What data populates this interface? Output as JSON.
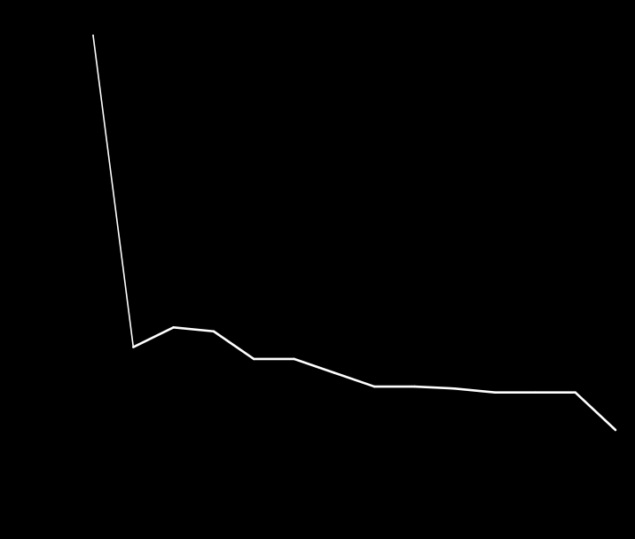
{
  "chart_data": {
    "type": "line",
    "title": "",
    "xlabel": "",
    "ylabel": "",
    "grid": false,
    "legend": "none",
    "x": [
      0,
      1,
      2,
      3,
      4,
      5,
      6,
      7,
      8,
      9,
      10,
      11,
      12,
      13
    ],
    "series": [
      {
        "values": [
          100,
          21,
          26,
          25,
          18,
          18,
          14.5,
          11,
          11,
          10.5,
          9.5,
          9.5,
          9.5,
          0
        ],
        "color": "#ffffff"
      }
    ],
    "xlim": [
      0,
      13
    ],
    "ylim": [
      0,
      100
    ]
  },
  "colors": {
    "background": "#000000",
    "line": "#ffffff"
  }
}
